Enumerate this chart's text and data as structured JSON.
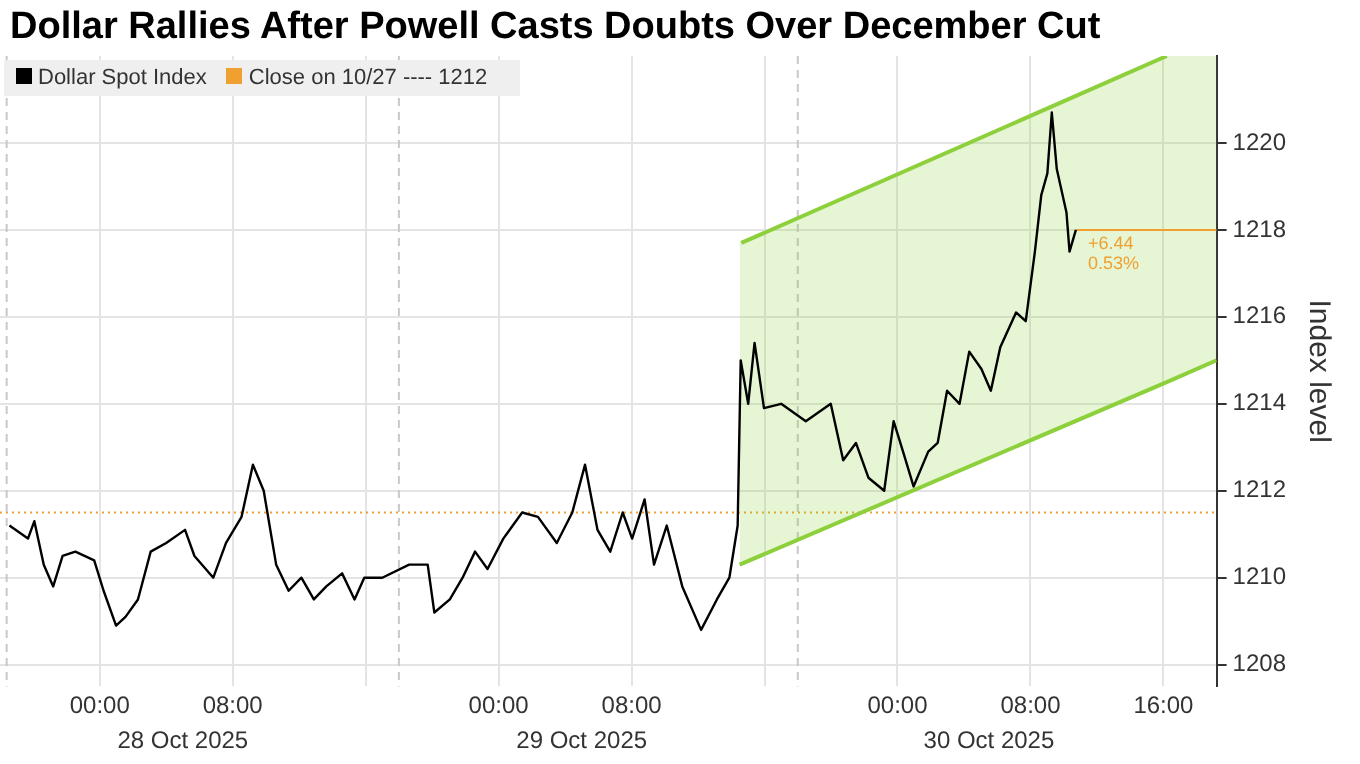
{
  "chart_data": {
    "type": "line",
    "title": "Dollar Rallies After Powell Casts Doubts Over December Cut",
    "ylabel": "Index level",
    "legend": "top left",
    "grid": true,
    "marker": "none",
    "xlim": [
      "2025-10-27T18:00",
      "2025-10-30T19:12"
    ],
    "ylim": [
      1207.5,
      1222
    ],
    "xticks": [
      {
        "value": "2025-10-28T00:00",
        "label": "00:00"
      },
      {
        "value": "2025-10-28T08:00",
        "label": "08:00"
      },
      {
        "value": "2025-10-28T16:00",
        "label": null
      },
      {
        "value": "2025-10-29T00:00",
        "label": "00:00"
      },
      {
        "value": "2025-10-29T08:00",
        "label": "08:00"
      },
      {
        "value": "2025-10-29T16:00",
        "label": null
      },
      {
        "value": "2025-10-30T00:00",
        "label": "00:00"
      },
      {
        "value": "2025-10-30T08:00",
        "label": "08:00"
      },
      {
        "value": "2025-10-30T16:00",
        "label": "16:00"
      }
    ],
    "x2lim": [
      "2025-10-27T18:00",
      "2025-10-30T19:12"
    ],
    "x2ticks": [
      {
        "value": "2025-10-28T05:00",
        "label": "28 Oct 2025"
      },
      {
        "value": "2025-10-29T05:00",
        "label": "29 Oct 2025"
      },
      {
        "value": "2025-10-30T05:30",
        "label": "30 Oct 2025"
      }
    ],
    "yticks": [
      1208,
      1210,
      1212,
      1214,
      1216,
      1218,
      1220
    ],
    "series": [
      {
        "name": "Dollar Spot Index",
        "color": "#000000",
        "x": [
          "2025-10-27T18:34",
          "2025-10-27T19:41",
          "2025-10-27T20:04",
          "2025-10-27T20:38",
          "2025-10-27T21:12",
          "2025-10-27T21:46",
          "2025-10-27T22:32",
          "2025-10-27T23:40",
          "2025-10-28T00:14",
          "2025-10-28T00:59",
          "2025-10-28T01:33",
          "2025-10-28T02:18",
          "2025-10-28T03:04",
          "2025-10-28T04:00",
          "2025-10-28T05:08",
          "2025-10-28T05:42",
          "2025-10-28T06:50",
          "2025-10-28T07:36",
          "2025-10-28T08:32",
          "2025-10-28T09:13",
          "2025-10-28T09:52",
          "2025-10-28T10:37",
          "2025-10-28T11:22",
          "2025-10-28T12:08",
          "2025-10-28T12:53",
          "2025-10-28T13:38",
          "2025-10-28T14:35",
          "2025-10-28T15:20",
          "2025-10-28T15:55",
          "2025-10-28T17:00",
          "2025-10-28T18:37",
          "2025-10-28T19:44",
          "2025-10-28T20:08",
          "2025-10-28T21:04",
          "2025-10-28T21:50",
          "2025-10-28T22:35",
          "2025-10-28T23:20",
          "2025-10-29T00:17",
          "2025-10-29T01:25",
          "2025-10-29T02:22",
          "2025-10-29T03:30",
          "2025-10-29T04:26",
          "2025-10-29T05:12",
          "2025-10-29T05:57",
          "2025-10-29T06:43",
          "2025-10-29T07:28",
          "2025-10-29T08:02",
          "2025-10-29T08:47",
          "2025-10-29T09:21",
          "2025-10-29T10:07",
          "2025-10-29T11:03",
          "2025-10-29T12:11",
          "2025-10-29T13:08",
          "2025-10-29T13:53",
          "2025-10-29T14:23",
          "2025-10-29T14:34",
          "2025-10-29T15:01",
          "2025-10-29T15:24",
          "2025-10-29T15:58",
          "2025-10-29T17:00",
          "2025-10-29T18:29",
          "2025-10-29T19:59",
          "2025-10-29T20:44",
          "2025-10-29T21:30",
          "2025-10-29T22:15",
          "2025-10-29T23:12",
          "2025-10-29T23:46",
          "2025-10-30T00:20",
          "2025-10-30T00:58",
          "2025-10-30T01:51",
          "2025-10-30T02:25",
          "2025-10-30T02:59",
          "2025-10-30T03:44",
          "2025-10-30T04:19",
          "2025-10-30T05:03",
          "2025-10-30T05:37",
          "2025-10-30T06:11",
          "2025-10-30T07:08",
          "2025-10-30T07:43",
          "2025-10-30T08:16",
          "2025-10-30T08:39",
          "2025-10-30T09:01",
          "2025-10-30T09:17",
          "2025-10-30T09:35",
          "2025-10-30T10:10",
          "2025-10-30T10:21",
          "2025-10-30T10:44"
        ],
        "values": [
          1211.2,
          1210.9,
          1211.3,
          1210.3,
          1209.8,
          1210.5,
          1210.6,
          1210.4,
          1209.7,
          1208.9,
          1209.1,
          1209.5,
          1210.6,
          1210.8,
          1211.1,
          1210.5,
          1210,
          1210.8,
          1211.4,
          1212.6,
          1212,
          1210.3,
          1209.7,
          1210,
          1209.5,
          1209.8,
          1210.1,
          1209.5,
          1210,
          1210,
          1210.3,
          1210.3,
          1209.2,
          1209.5,
          1210,
          1210.6,
          1210.2,
          1210.9,
          1211.5,
          1211.4,
          1210.8,
          1211.5,
          1212.6,
          1211.1,
          1210.6,
          1211.5,
          1210.9,
          1211.8,
          1210.3,
          1211.2,
          1209.8,
          1208.8,
          1209.5,
          1210,
          1211.2,
          1215,
          1214,
          1215.4,
          1213.9,
          1214,
          1213.6,
          1214,
          1212.7,
          1213.1,
          1212.3,
          1212,
          1213.6,
          1212.9,
          1212.1,
          1212.9,
          1213.1,
          1214.3,
          1214,
          1215.2,
          1214.8,
          1214.3,
          1215.3,
          1216.1,
          1215.9,
          1217.5,
          1218.8,
          1219.3,
          1220.7,
          1219.4,
          1218.4,
          1217.5,
          1218
        ]
      },
      {
        "color": "#8dd03c",
        "x": [
          "2025-10-29T14:36",
          "2025-10-30T16:12"
        ],
        "values": [
          1217.7,
          1222
        ]
      },
      {
        "color": "#8dd03c",
        "x": [
          "2025-10-29T14:30",
          "2025-10-30T16:12",
          "2025-10-30T19:12"
        ],
        "values": [
          1210.3,
          1214.5,
          1215
        ],
        "lower": [
          1210.3,
          1214.5,
          1215
        ],
        "upper": [
          1217.7,
          1222,
          1222
        ]
      },
      {
        "color": "#f0a030",
        "x": [
          "2025-10-30T10:44",
          "2025-10-30T19:12"
        ],
        "values": [
          1218,
          1218
        ]
      }
    ],
    "ref_lines": [
      {
        "axis": "y",
        "value": 1211.5,
        "label": "Close on 10/27 ---- 1212",
        "color": "#f0a030",
        "line_style": "dotted"
      },
      {
        "axis": "x",
        "value": "2025-10-27T18:24",
        "color": "#c8c8c8",
        "line_style": "dashed"
      },
      {
        "axis": "x",
        "value": "2025-10-28T18:00",
        "color": "#c8c8c8",
        "line_style": "dashed"
      },
      {
        "axis": "x",
        "value": "2025-10-29T18:00",
        "color": "#c8c8c8",
        "line_style": "dashed"
      }
    ],
    "annotations": [
      {
        "text": "+6.44",
        "x": "2025-10-30T10:44",
        "y": 1218
      },
      {
        "text": "0.53%",
        "x": "2025-10-30T10:44",
        "y": 1218
      }
    ]
  }
}
